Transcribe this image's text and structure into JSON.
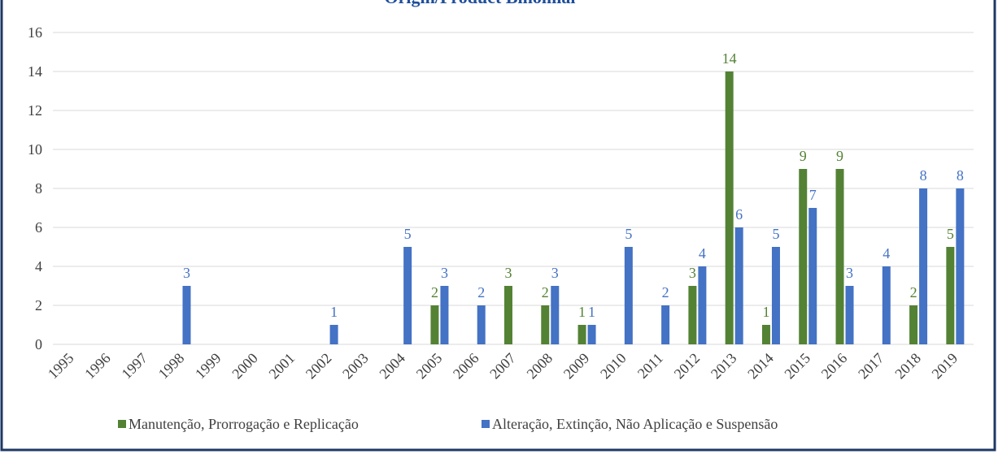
{
  "chart_data": {
    "type": "bar",
    "title": "Origin/Product Binomial",
    "categories": [
      "1995",
      "1996",
      "1997",
      "1998",
      "1999",
      "2000",
      "2001",
      "2002",
      "2003",
      "2004",
      "2005",
      "2006",
      "2007",
      "2008",
      "2009",
      "2010",
      "2011",
      "2012",
      "2013",
      "2014",
      "2015",
      "2016",
      "2017",
      "2018",
      "2019"
    ],
    "series": [
      {
        "name": "Manutenção, Prorrogação e Replicação",
        "color": "#548235",
        "values": [
          null,
          null,
          null,
          null,
          null,
          null,
          null,
          null,
          null,
          null,
          2,
          null,
          3,
          2,
          1,
          null,
          null,
          3,
          14,
          1,
          9,
          9,
          null,
          2,
          5
        ]
      },
      {
        "name": "Alteração, Extinção, Não Aplicação e Suspensão",
        "color": "#4472c4",
        "values": [
          null,
          null,
          null,
          3,
          null,
          null,
          null,
          1,
          null,
          5,
          3,
          2,
          null,
          3,
          1,
          5,
          2,
          4,
          6,
          5,
          7,
          3,
          4,
          8,
          8
        ]
      }
    ],
    "ylim": [
      0,
      16
    ],
    "yticks": [
      0,
      2,
      4,
      6,
      8,
      10,
      12,
      14,
      16
    ],
    "grid": true,
    "legend": "bottom"
  }
}
